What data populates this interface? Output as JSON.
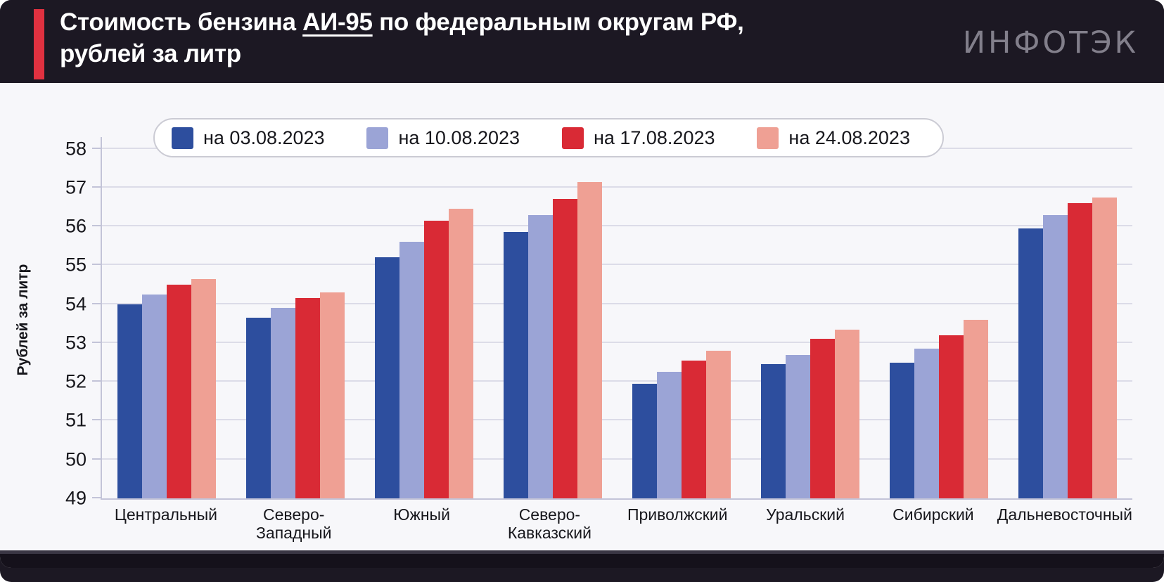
{
  "header": {
    "title_pre": "Стоимость бензина ",
    "title_underlined": "АИ-95",
    "title_post": " по федеральным округам РФ,",
    "title_line2": "рублей за литр",
    "logo_text": "ИНФОТЭК"
  },
  "colors": {
    "frame_bg": "#1c1823",
    "accent_red": "#e03140",
    "card_bg": "#f7f7fa",
    "gridline": "#dcdce8",
    "axis": "#c3c4d8",
    "text": "#17171c",
    "series_1": "#2d4e9e",
    "series_2": "#9ba4d6",
    "series_3": "#d92a35",
    "series_4": "#efa094"
  },
  "chart_data": {
    "type": "bar",
    "title": "Стоимость бензина АИ-95 по федеральным округам РФ, рублей за литр",
    "xlabel": "",
    "ylabel": "Рублей за литр",
    "ylim": [
      49,
      58
    ],
    "yticks": [
      49,
      50,
      51,
      52,
      53,
      54,
      55,
      56,
      57,
      58
    ],
    "grid": true,
    "legend_position": "top",
    "categories": [
      "Центральный",
      "Северо-Западный",
      "Южный",
      "Северо-Кавказский",
      "Приволжский",
      "Уральский",
      "Сибирский",
      "Дальневосточный"
    ],
    "categories_display": [
      [
        "Центральный"
      ],
      [
        "Северо-",
        "Западный"
      ],
      [
        "Южный"
      ],
      [
        "Северо-",
        "Кавказский"
      ],
      [
        "Приволжский"
      ],
      [
        "Уральский"
      ],
      [
        "Сибирский"
      ],
      [
        "Дальневосточный"
      ]
    ],
    "series": [
      {
        "name": "на 03.08.2023",
        "color": "#2d4e9e",
        "values": [
          54.0,
          53.65,
          55.2,
          55.85,
          51.95,
          52.45,
          52.5,
          55.95
        ]
      },
      {
        "name": "на 10.08.2023",
        "color": "#9ba4d6",
        "values": [
          54.25,
          53.9,
          55.6,
          56.3,
          52.25,
          52.7,
          52.85,
          56.3
        ]
      },
      {
        "name": "на 17.08.2023",
        "color": "#d92a35",
        "values": [
          54.5,
          54.15,
          56.15,
          56.7,
          52.55,
          53.1,
          53.2,
          56.6
        ]
      },
      {
        "name": "на 24.08.2023",
        "color": "#efa094",
        "values": [
          54.65,
          54.3,
          56.45,
          57.15,
          52.8,
          53.35,
          53.6,
          56.75
        ]
      }
    ]
  }
}
